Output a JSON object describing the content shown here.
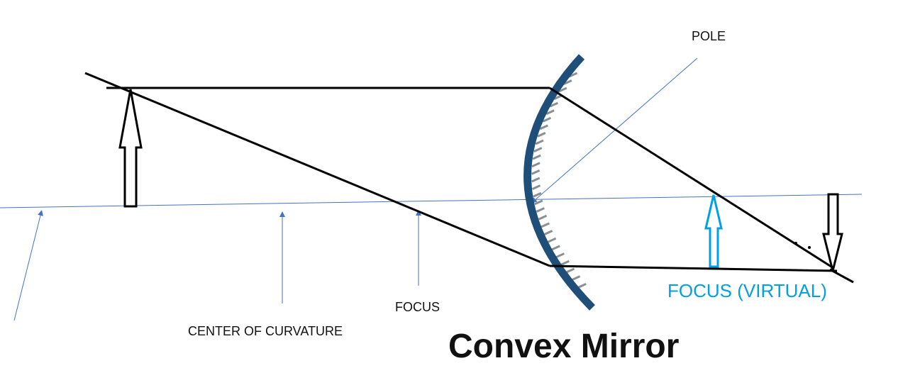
{
  "labels": {
    "pole": "POLE",
    "center_of_curvature": "CENTER OF CURVATURE",
    "focus": "FOCUS",
    "focus_virtual": "FOCUS (VIRTUAL)"
  },
  "title": "Convex Mirror",
  "colors": {
    "ray": "#000000",
    "axis": "#4472c4",
    "mirror": "#1f4e79",
    "hatch": "#8a8f94",
    "virtual": "#00a0e3",
    "text": "#111111"
  }
}
